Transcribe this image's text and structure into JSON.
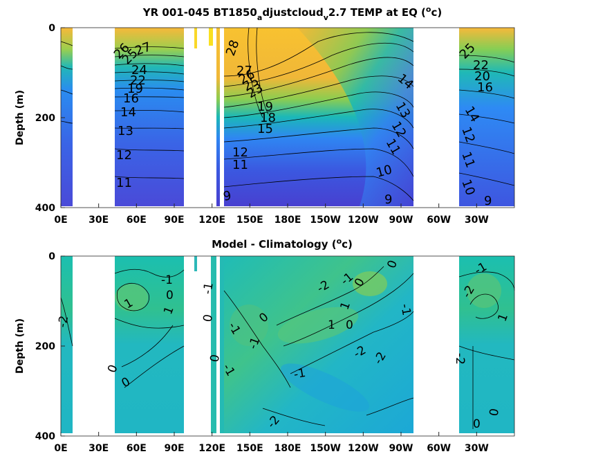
{
  "chart_data": [
    {
      "type": "heatmap",
      "title": {
        "prefix": "YR 001-045 BT1850",
        "sub1": "a",
        "mid": "djustcloud",
        "sub2": "v",
        "suffix": "2.7 TEMP at EQ (",
        "sup": "o",
        "end": "c)"
      },
      "ylabel": "Depth (m)",
      "xlim_deg_east": [
        0,
        360
      ],
      "ylim_m": [
        400,
        0
      ],
      "y_ticks": [
        "0",
        "200",
        "400"
      ],
      "x_ticks": [
        "0E",
        "30E",
        "60E",
        "90E",
        "120E",
        "150E",
        "180E",
        "150W",
        "120W",
        "90W",
        "60W",
        "30W"
      ],
      "contour_labels": [
        "27",
        "26",
        "25",
        "24",
        "23",
        "22",
        "21",
        "20",
        "19",
        "18",
        "17",
        "16",
        "15",
        "14",
        "13",
        "12",
        "11",
        "10",
        "9",
        "28"
      ],
      "colormap": [
        "#3e26a8",
        "#2e87f7",
        "#12beb9",
        "#80cb58",
        "#f9b538",
        "#f9fb15"
      ]
    },
    {
      "type": "heatmap",
      "title": {
        "prefix": "Model - Climatology (",
        "sup": "o",
        "end": "c)"
      },
      "ylabel": "Depth (m)",
      "xlim_deg_east": [
        0,
        360
      ],
      "ylim_m": [
        400,
        0
      ],
      "y_ticks": [
        "0",
        "200",
        "400"
      ],
      "x_ticks": [
        "0E",
        "30E",
        "60E",
        "90E",
        "120E",
        "150E",
        "180E",
        "150W",
        "120W",
        "90W",
        "60W",
        "30W"
      ],
      "contour_labels": [
        "-2",
        "-1",
        "0",
        "1",
        "2"
      ],
      "colormap": [
        "#2e87f7",
        "#12beb9",
        "#80cb58"
      ]
    }
  ]
}
